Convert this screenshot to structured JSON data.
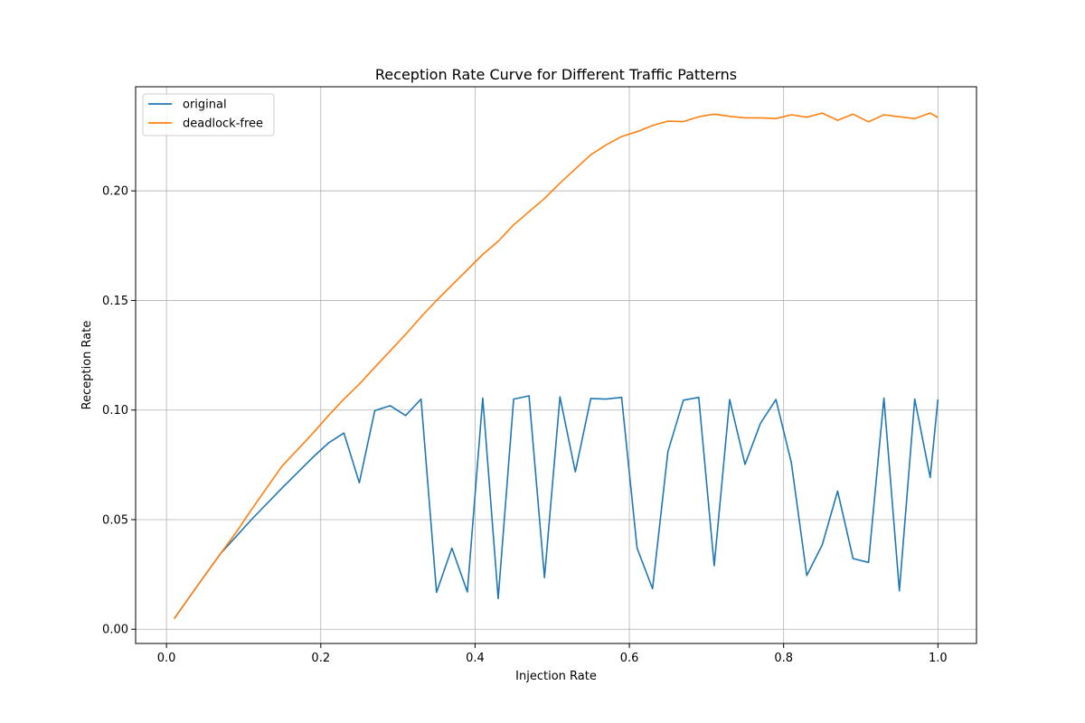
{
  "chart_data": {
    "type": "line",
    "title": "Reception Rate Curve for Different Traffic Patterns",
    "xlabel": "Injection Rate",
    "ylabel": "Reception Rate",
    "xlim": [
      -0.04,
      1.05
    ],
    "ylim": [
      -0.0065,
      0.2475
    ],
    "grid": true,
    "legend_position": "top-left",
    "x_ticks": [
      0.0,
      0.2,
      0.4,
      0.6,
      0.8,
      1.0
    ],
    "x_tick_labels": [
      "0.0",
      "0.2",
      "0.4",
      "0.6",
      "0.8",
      "1.0"
    ],
    "y_ticks": [
      0.0,
      0.05,
      0.1,
      0.15,
      0.2
    ],
    "y_tick_labels": [
      "0.00",
      "0.05",
      "0.10",
      "0.15",
      "0.20"
    ],
    "x": [
      0.01,
      0.03,
      0.05,
      0.07,
      0.09,
      0.11,
      0.13,
      0.15,
      0.17,
      0.19,
      0.21,
      0.23,
      0.25,
      0.27,
      0.29,
      0.31,
      0.33,
      0.35,
      0.37,
      0.39,
      0.41,
      0.43,
      0.45,
      0.47,
      0.49,
      0.51,
      0.53,
      0.55,
      0.57,
      0.59,
      0.61,
      0.63,
      0.65,
      0.67,
      0.69,
      0.71,
      0.73,
      0.75,
      0.77,
      0.79,
      0.81,
      0.83,
      0.85,
      0.87,
      0.89,
      0.91,
      0.93,
      0.95,
      0.97,
      0.99,
      1.0
    ],
    "series": [
      {
        "name": "original",
        "color": "#1f77b4",
        "values": [
          0.0048,
          0.0148,
          0.0247,
          0.0345,
          0.0422,
          0.05,
          0.0572,
          0.0645,
          0.0715,
          0.0785,
          0.085,
          0.0895,
          0.0668,
          0.0997,
          0.102,
          0.0975,
          0.105,
          0.0168,
          0.037,
          0.017,
          0.1055,
          0.014,
          0.105,
          0.1065,
          0.0235,
          0.106,
          0.0718,
          0.1053,
          0.105,
          0.1058,
          0.037,
          0.0185,
          0.081,
          0.1045,
          0.1058,
          0.029,
          0.1048,
          0.0752,
          0.094,
          0.1048,
          0.076,
          0.0245,
          0.0385,
          0.063,
          0.0322,
          0.0305,
          0.1055,
          0.0175,
          0.105,
          0.0692,
          0.1048
        ]
      },
      {
        "name": "deadlock-free",
        "color": "#ff7f0e",
        "values": [
          0.0048,
          0.0148,
          0.0247,
          0.0345,
          0.044,
          0.0545,
          0.0645,
          0.0745,
          0.082,
          0.0895,
          0.0975,
          0.105,
          0.1118,
          0.1195,
          0.127,
          0.1345,
          0.1425,
          0.15,
          0.157,
          0.164,
          0.171,
          0.177,
          0.1845,
          0.1905,
          0.1965,
          0.2035,
          0.21,
          0.2165,
          0.221,
          0.2248,
          0.227,
          0.2298,
          0.2318,
          0.2316,
          0.2338,
          0.235,
          0.234,
          0.2333,
          0.2333,
          0.233,
          0.2347,
          0.2336,
          0.2355,
          0.2322,
          0.235,
          0.2315,
          0.2347,
          0.2338,
          0.233,
          0.2355,
          0.2335
        ]
      }
    ]
  }
}
